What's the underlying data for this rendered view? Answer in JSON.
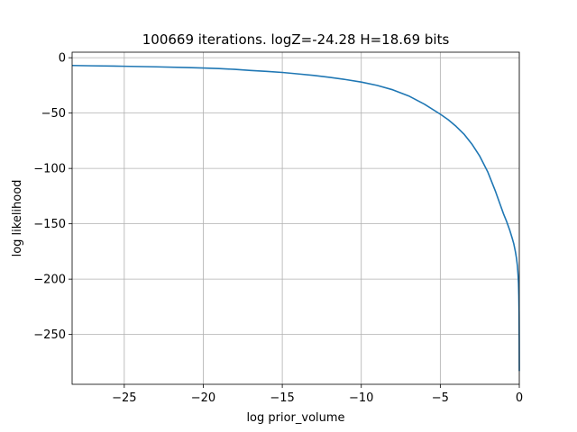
{
  "chart_data": {
    "type": "line",
    "title": "100669 iterations. logZ=-24.28 H=18.69 bits",
    "xlabel": "log prior_volume",
    "ylabel": "log likelihood",
    "xlim": [
      -28.3,
      0.0
    ],
    "ylim": [
      -295,
      5
    ],
    "xticks": [
      -25,
      -20,
      -15,
      -10,
      -5,
      0
    ],
    "xtick_labels": [
      "−25",
      "−20",
      "−15",
      "−10",
      "−5",
      "0"
    ],
    "yticks": [
      0,
      -50,
      -100,
      -150,
      -200,
      -250
    ],
    "ytick_labels": [
      "0",
      "−50",
      "−100",
      "−150",
      "−200",
      "−250"
    ],
    "grid": true,
    "line_color": "#1f77b4",
    "series": [
      {
        "x": [
          -28.3,
          -27,
          -25,
          -23,
          -21,
          -20,
          -19,
          -18,
          -17,
          -16,
          -15,
          -14,
          -13,
          -12,
          -11,
          -10,
          -9,
          -8,
          -7,
          -6,
          -5,
          -4.5,
          -4,
          -3.5,
          -3,
          -2.5,
          -2,
          -1.5,
          -1.2,
          -1.0,
          -0.8,
          -0.6,
          -0.45,
          -0.35,
          -0.25,
          -0.18,
          -0.12,
          -0.08,
          -0.05,
          -0.03,
          -0.015,
          -0.005,
          0.0
        ],
        "y": [
          -7,
          -7.3,
          -7.7,
          -8.2,
          -8.9,
          -9.3,
          -9.8,
          -10.5,
          -11.5,
          -12.3,
          -13.3,
          -14.6,
          -16.0,
          -17.7,
          -19.7,
          -22.0,
          -25.0,
          -29.0,
          -34.5,
          -42.0,
          -51.0,
          -56.0,
          -62.0,
          -69.0,
          -78.0,
          -89.0,
          -103.0,
          -121.0,
          -133.0,
          -141.0,
          -148.0,
          -156.0,
          -163.0,
          -168.0,
          -175.0,
          -181.0,
          -188.0,
          -196.0,
          -204.0,
          -215.0,
          -230.0,
          -255.0,
          -283.0
        ]
      }
    ]
  }
}
